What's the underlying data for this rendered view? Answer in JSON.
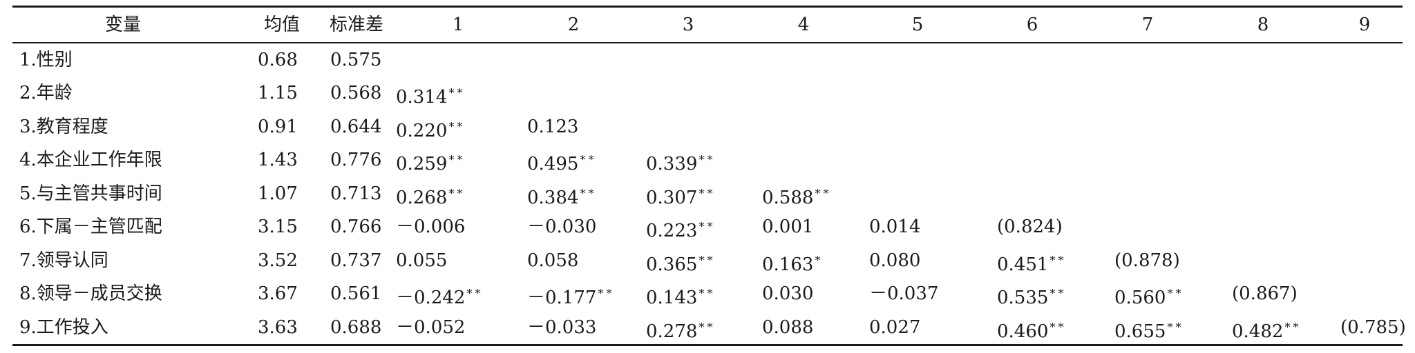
{
  "table": {
    "headers": [
      "变量",
      "均值",
      "标准差",
      "1",
      "2",
      "3",
      "4",
      "5",
      "6",
      "7",
      "8",
      "9"
    ],
    "rows": [
      {
        "variable": "1.性别",
        "mean": "0.68",
        "sd": "0.575",
        "cells": []
      },
      {
        "variable": "2.年龄",
        "mean": "1.15",
        "sd": "0.568",
        "cells": [
          {
            "value": "0.314",
            "sig": "**"
          }
        ]
      },
      {
        "variable": "3.教育程度",
        "mean": "0.91",
        "sd": "0.644",
        "cells": [
          {
            "value": "0.220",
            "sig": "**"
          },
          {
            "value": "0.123",
            "sig": ""
          }
        ]
      },
      {
        "variable": "4.本企业工作年限",
        "mean": "1.43",
        "sd": "0.776",
        "cells": [
          {
            "value": "0.259",
            "sig": "**"
          },
          {
            "value": "0.495",
            "sig": "**"
          },
          {
            "value": "0.339",
            "sig": "**"
          }
        ]
      },
      {
        "variable": "5.与主管共事时间",
        "mean": "1.07",
        "sd": "0.713",
        "cells": [
          {
            "value": "0.268",
            "sig": "**"
          },
          {
            "value": "0.384",
            "sig": "**"
          },
          {
            "value": "0.307",
            "sig": "**"
          },
          {
            "value": "0.588",
            "sig": "**"
          }
        ]
      },
      {
        "variable": "6.下属－主管匹配",
        "mean": "3.15",
        "sd": "0.766",
        "cells": [
          {
            "value": "－0.006",
            "sig": ""
          },
          {
            "value": "－0.030",
            "sig": ""
          },
          {
            "value": "0.223",
            "sig": "**"
          },
          {
            "value": "0.001",
            "sig": ""
          },
          {
            "value": "0.014",
            "sig": ""
          },
          {
            "value": "(0.824)",
            "sig": ""
          }
        ]
      },
      {
        "variable": "7.领导认同",
        "mean": "3.52",
        "sd": "0.737",
        "cells": [
          {
            "value": "0.055",
            "sig": ""
          },
          {
            "value": "0.058",
            "sig": ""
          },
          {
            "value": "0.365",
            "sig": "**"
          },
          {
            "value": "0.163",
            "sig": "*"
          },
          {
            "value": "0.080",
            "sig": ""
          },
          {
            "value": "0.451",
            "sig": "**"
          },
          {
            "value": "(0.878)",
            "sig": ""
          }
        ]
      },
      {
        "variable": "8.领导－成员交换",
        "mean": "3.67",
        "sd": "0.561",
        "cells": [
          {
            "value": "－0.242",
            "sig": "**"
          },
          {
            "value": "－0.177",
            "sig": "**"
          },
          {
            "value": "0.143",
            "sig": "**"
          },
          {
            "value": "0.030",
            "sig": ""
          },
          {
            "value": "－0.037",
            "sig": ""
          },
          {
            "value": "0.535",
            "sig": "**"
          },
          {
            "value": "0.560",
            "sig": "**"
          },
          {
            "value": "(0.867)",
            "sig": ""
          }
        ]
      },
      {
        "variable": "9.工作投入",
        "mean": "3.63",
        "sd": "0.688",
        "cells": [
          {
            "value": "－0.052",
            "sig": ""
          },
          {
            "value": "－0.033",
            "sig": ""
          },
          {
            "value": "0.278",
            "sig": "**"
          },
          {
            "value": "0.088",
            "sig": ""
          },
          {
            "value": "0.027",
            "sig": ""
          },
          {
            "value": "0.460",
            "sig": "**"
          },
          {
            "value": "0.655",
            "sig": "**"
          },
          {
            "value": "0.482",
            "sig": "**"
          },
          {
            "value": "(0.785)",
            "sig": ""
          }
        ]
      }
    ]
  }
}
